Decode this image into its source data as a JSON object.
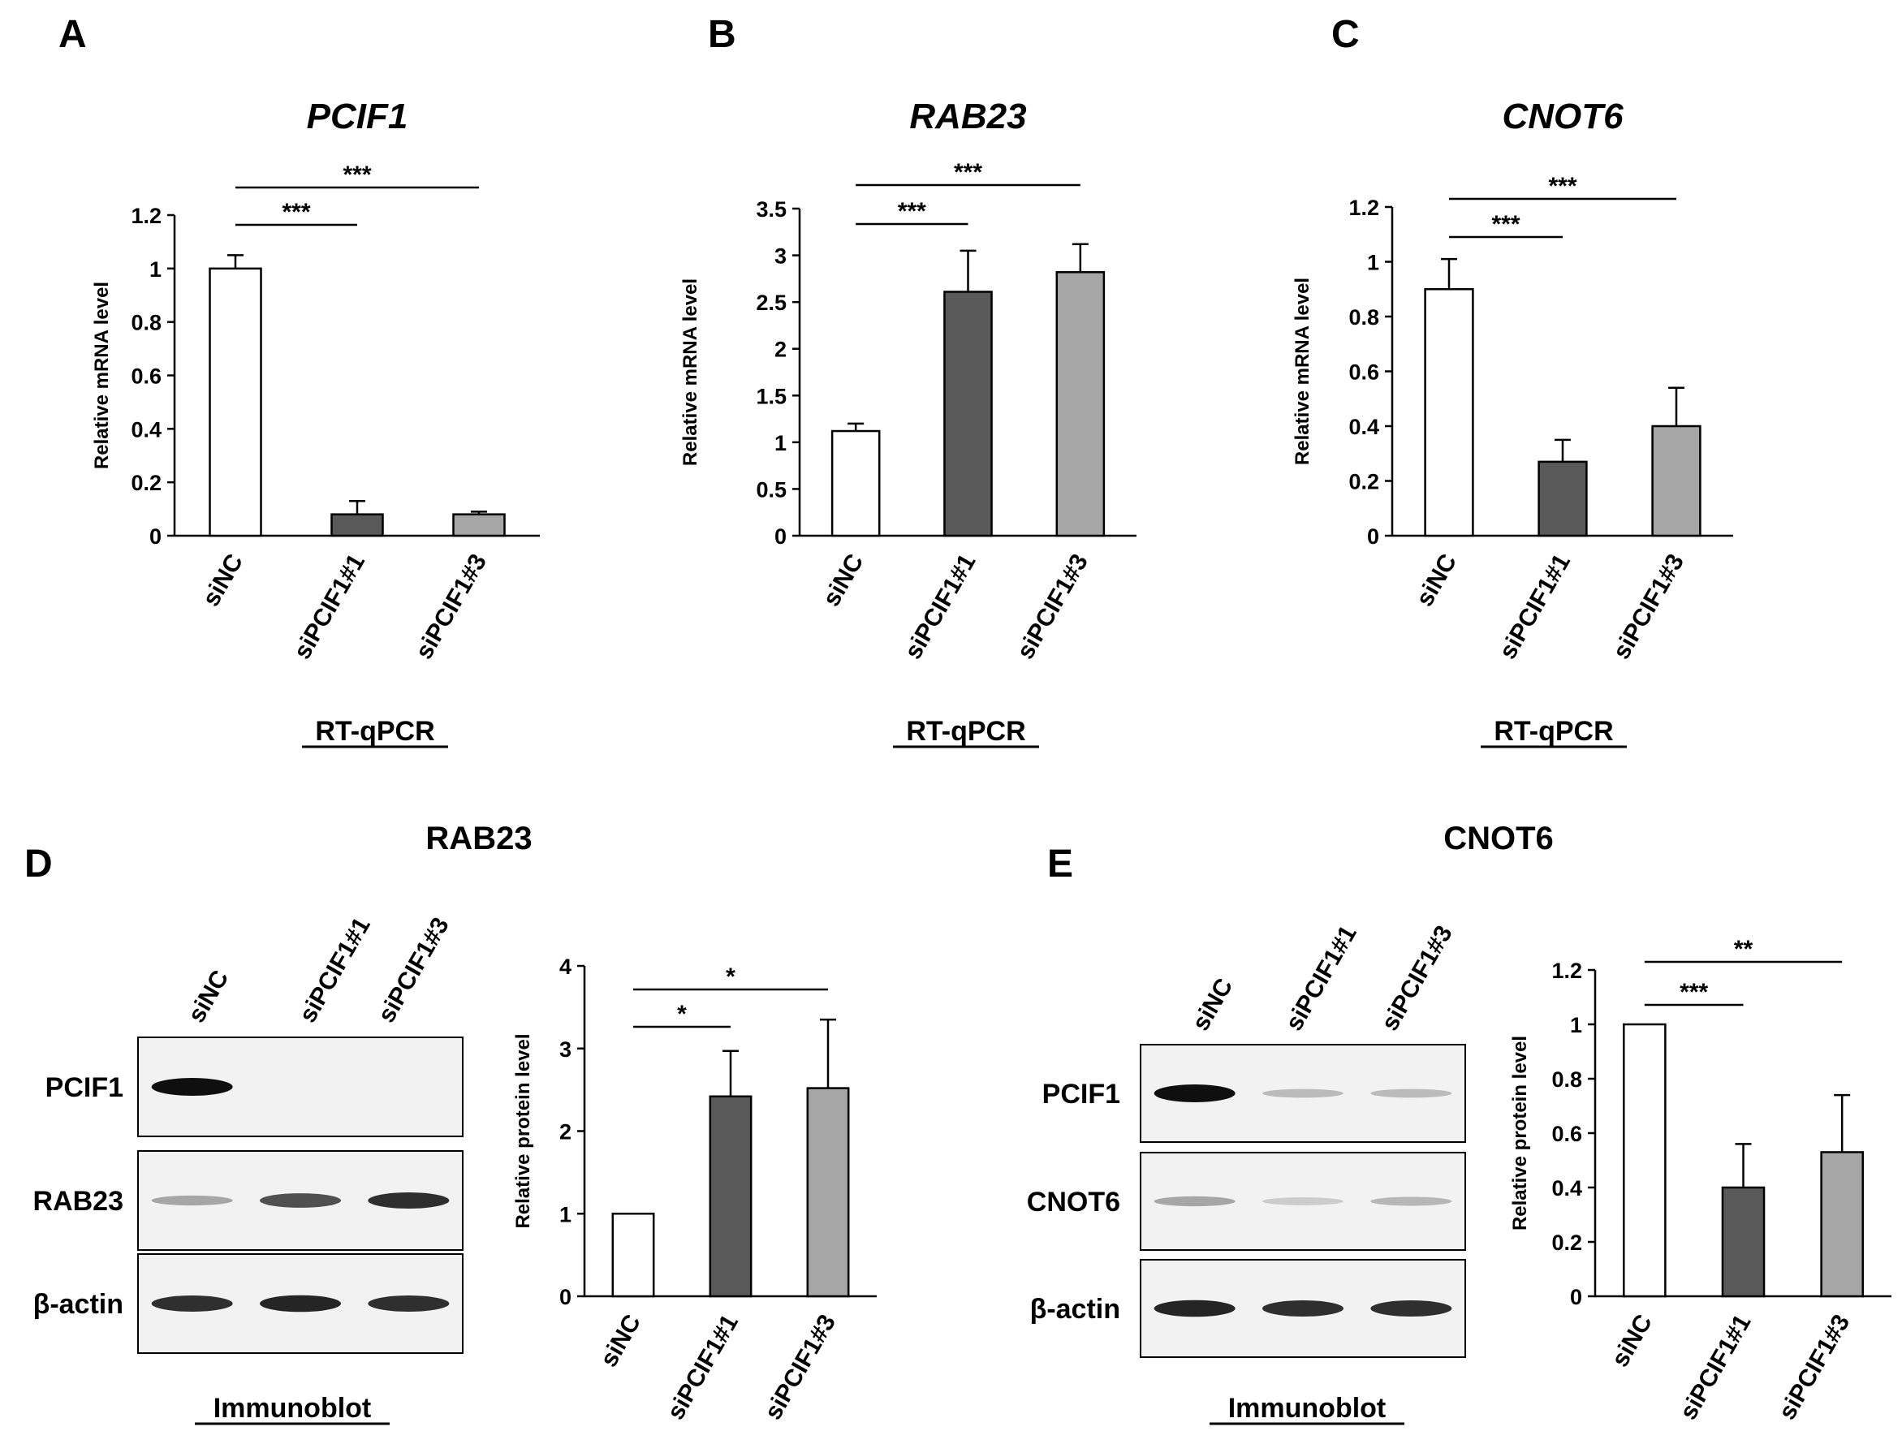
{
  "colors": {
    "sinc": "#ffffff",
    "si1": "#595959",
    "si3": "#a6a6a6",
    "axis": "#000000",
    "text": "#000000"
  },
  "panel_letters": [
    "A",
    "B",
    "C",
    "D",
    "E"
  ],
  "rtqpcr_label": "RT-qPCR",
  "immunoblot_label": "Immunoblot",
  "blot_D": {
    "title": "RAB23",
    "lanes": [
      "siNC",
      "siPCIF1#1",
      "siPCIF1#3"
    ],
    "rows": [
      "PCIF1",
      "RAB23",
      "β-actin"
    ],
    "band_strength": [
      [
        1.0,
        0.0,
        0.0
      ],
      [
        0.3,
        0.7,
        0.85
      ],
      [
        0.85,
        0.9,
        0.85
      ]
    ]
  },
  "blot_E": {
    "title": "CNOT6",
    "lanes": [
      "siNC",
      "siPCIF1#1",
      "siPCIF1#3"
    ],
    "rows": [
      "PCIF1",
      "CNOT6",
      "β-actin"
    ],
    "band_strength": [
      [
        1.0,
        0.2,
        0.2
      ],
      [
        0.3,
        0.12,
        0.22
      ],
      [
        0.9,
        0.85,
        0.85
      ]
    ]
  },
  "chart_data": [
    {
      "panel": "A",
      "type": "bar",
      "title": "PCIF1",
      "title_italic": true,
      "ylabel": "Relative mRNA level",
      "categories": [
        "siNC",
        "siPCIF1#1",
        "siPCIF1#3"
      ],
      "values": [
        1.0,
        0.08,
        0.08
      ],
      "errors": [
        0.05,
        0.05,
        0.01
      ],
      "ylim": [
        0,
        1.2
      ],
      "yticks": [
        0,
        0.2,
        0.4,
        0.6,
        0.8,
        1,
        1.2
      ],
      "ytick_labels": [
        "0",
        "0.2",
        "0.4",
        "0.6",
        "0.8",
        "1",
        "1.2"
      ],
      "significance": [
        {
          "from": 0,
          "to": 1,
          "label": "***"
        },
        {
          "from": 0,
          "to": 2,
          "label": "***"
        }
      ]
    },
    {
      "panel": "B",
      "type": "bar",
      "title": "RAB23",
      "title_italic": true,
      "ylabel": "Relative mRNA level",
      "categories": [
        "siNC",
        "siPCIF1#1",
        "siPCIF1#3"
      ],
      "values": [
        1.12,
        2.61,
        2.82
      ],
      "errors": [
        0.08,
        0.44,
        0.3
      ],
      "ylim": [
        0,
        3.5
      ],
      "yticks": [
        0,
        0.5,
        1,
        1.5,
        2,
        2.5,
        3,
        3.5
      ],
      "ytick_labels": [
        "0",
        "0.5",
        "1",
        "1.5",
        "2",
        "2.5",
        "3",
        "3.5"
      ],
      "significance": [
        {
          "from": 0,
          "to": 1,
          "label": "***"
        },
        {
          "from": 0,
          "to": 2,
          "label": "***"
        }
      ]
    },
    {
      "panel": "C",
      "type": "bar",
      "title": "CNOT6",
      "title_italic": true,
      "ylabel": "Relative mRNA level",
      "categories": [
        "siNC",
        "siPCIF1#1",
        "siPCIF1#3"
      ],
      "values": [
        0.9,
        0.27,
        0.4
      ],
      "errors": [
        0.11,
        0.08,
        0.14
      ],
      "ylim": [
        0,
        1.2
      ],
      "yticks": [
        0,
        0.2,
        0.4,
        0.6,
        0.8,
        1,
        1.2
      ],
      "ytick_labels": [
        "0",
        "0.2",
        "0.4",
        "0.6",
        "0.8",
        "1",
        "1.2"
      ],
      "significance": [
        {
          "from": 0,
          "to": 1,
          "label": "***"
        },
        {
          "from": 0,
          "to": 2,
          "label": "***"
        }
      ]
    },
    {
      "panel": "D",
      "type": "bar",
      "title": "",
      "title_italic": false,
      "ylabel": "Relative protein level",
      "categories": [
        "siNC",
        "siPCIF1#1",
        "siPCIF1#3"
      ],
      "values": [
        1.0,
        2.42,
        2.52
      ],
      "errors": [
        0.0,
        0.55,
        0.83
      ],
      "ylim": [
        0,
        4
      ],
      "yticks": [
        0,
        1,
        2,
        3,
        4
      ],
      "ytick_labels": [
        "0",
        "1",
        "2",
        "3",
        "4"
      ],
      "significance": [
        {
          "from": 0,
          "to": 1,
          "label": "*"
        },
        {
          "from": 0,
          "to": 2,
          "label": "*"
        }
      ]
    },
    {
      "panel": "E",
      "type": "bar",
      "title": "",
      "title_italic": false,
      "ylabel": "Relative protein level",
      "categories": [
        "siNC",
        "siPCIF1#1",
        "siPCIF1#3"
      ],
      "values": [
        1.0,
        0.4,
        0.53
      ],
      "errors": [
        0.0,
        0.16,
        0.21
      ],
      "ylim": [
        0,
        1.2
      ],
      "yticks": [
        0,
        0.2,
        0.4,
        0.6,
        0.8,
        1,
        1.2
      ],
      "ytick_labels": [
        "0",
        "0.2",
        "0.4",
        "0.6",
        "0.8",
        "1",
        "1.2"
      ],
      "significance": [
        {
          "from": 0,
          "to": 1,
          "label": "***"
        },
        {
          "from": 0,
          "to": 2,
          "label": "**"
        }
      ]
    }
  ]
}
